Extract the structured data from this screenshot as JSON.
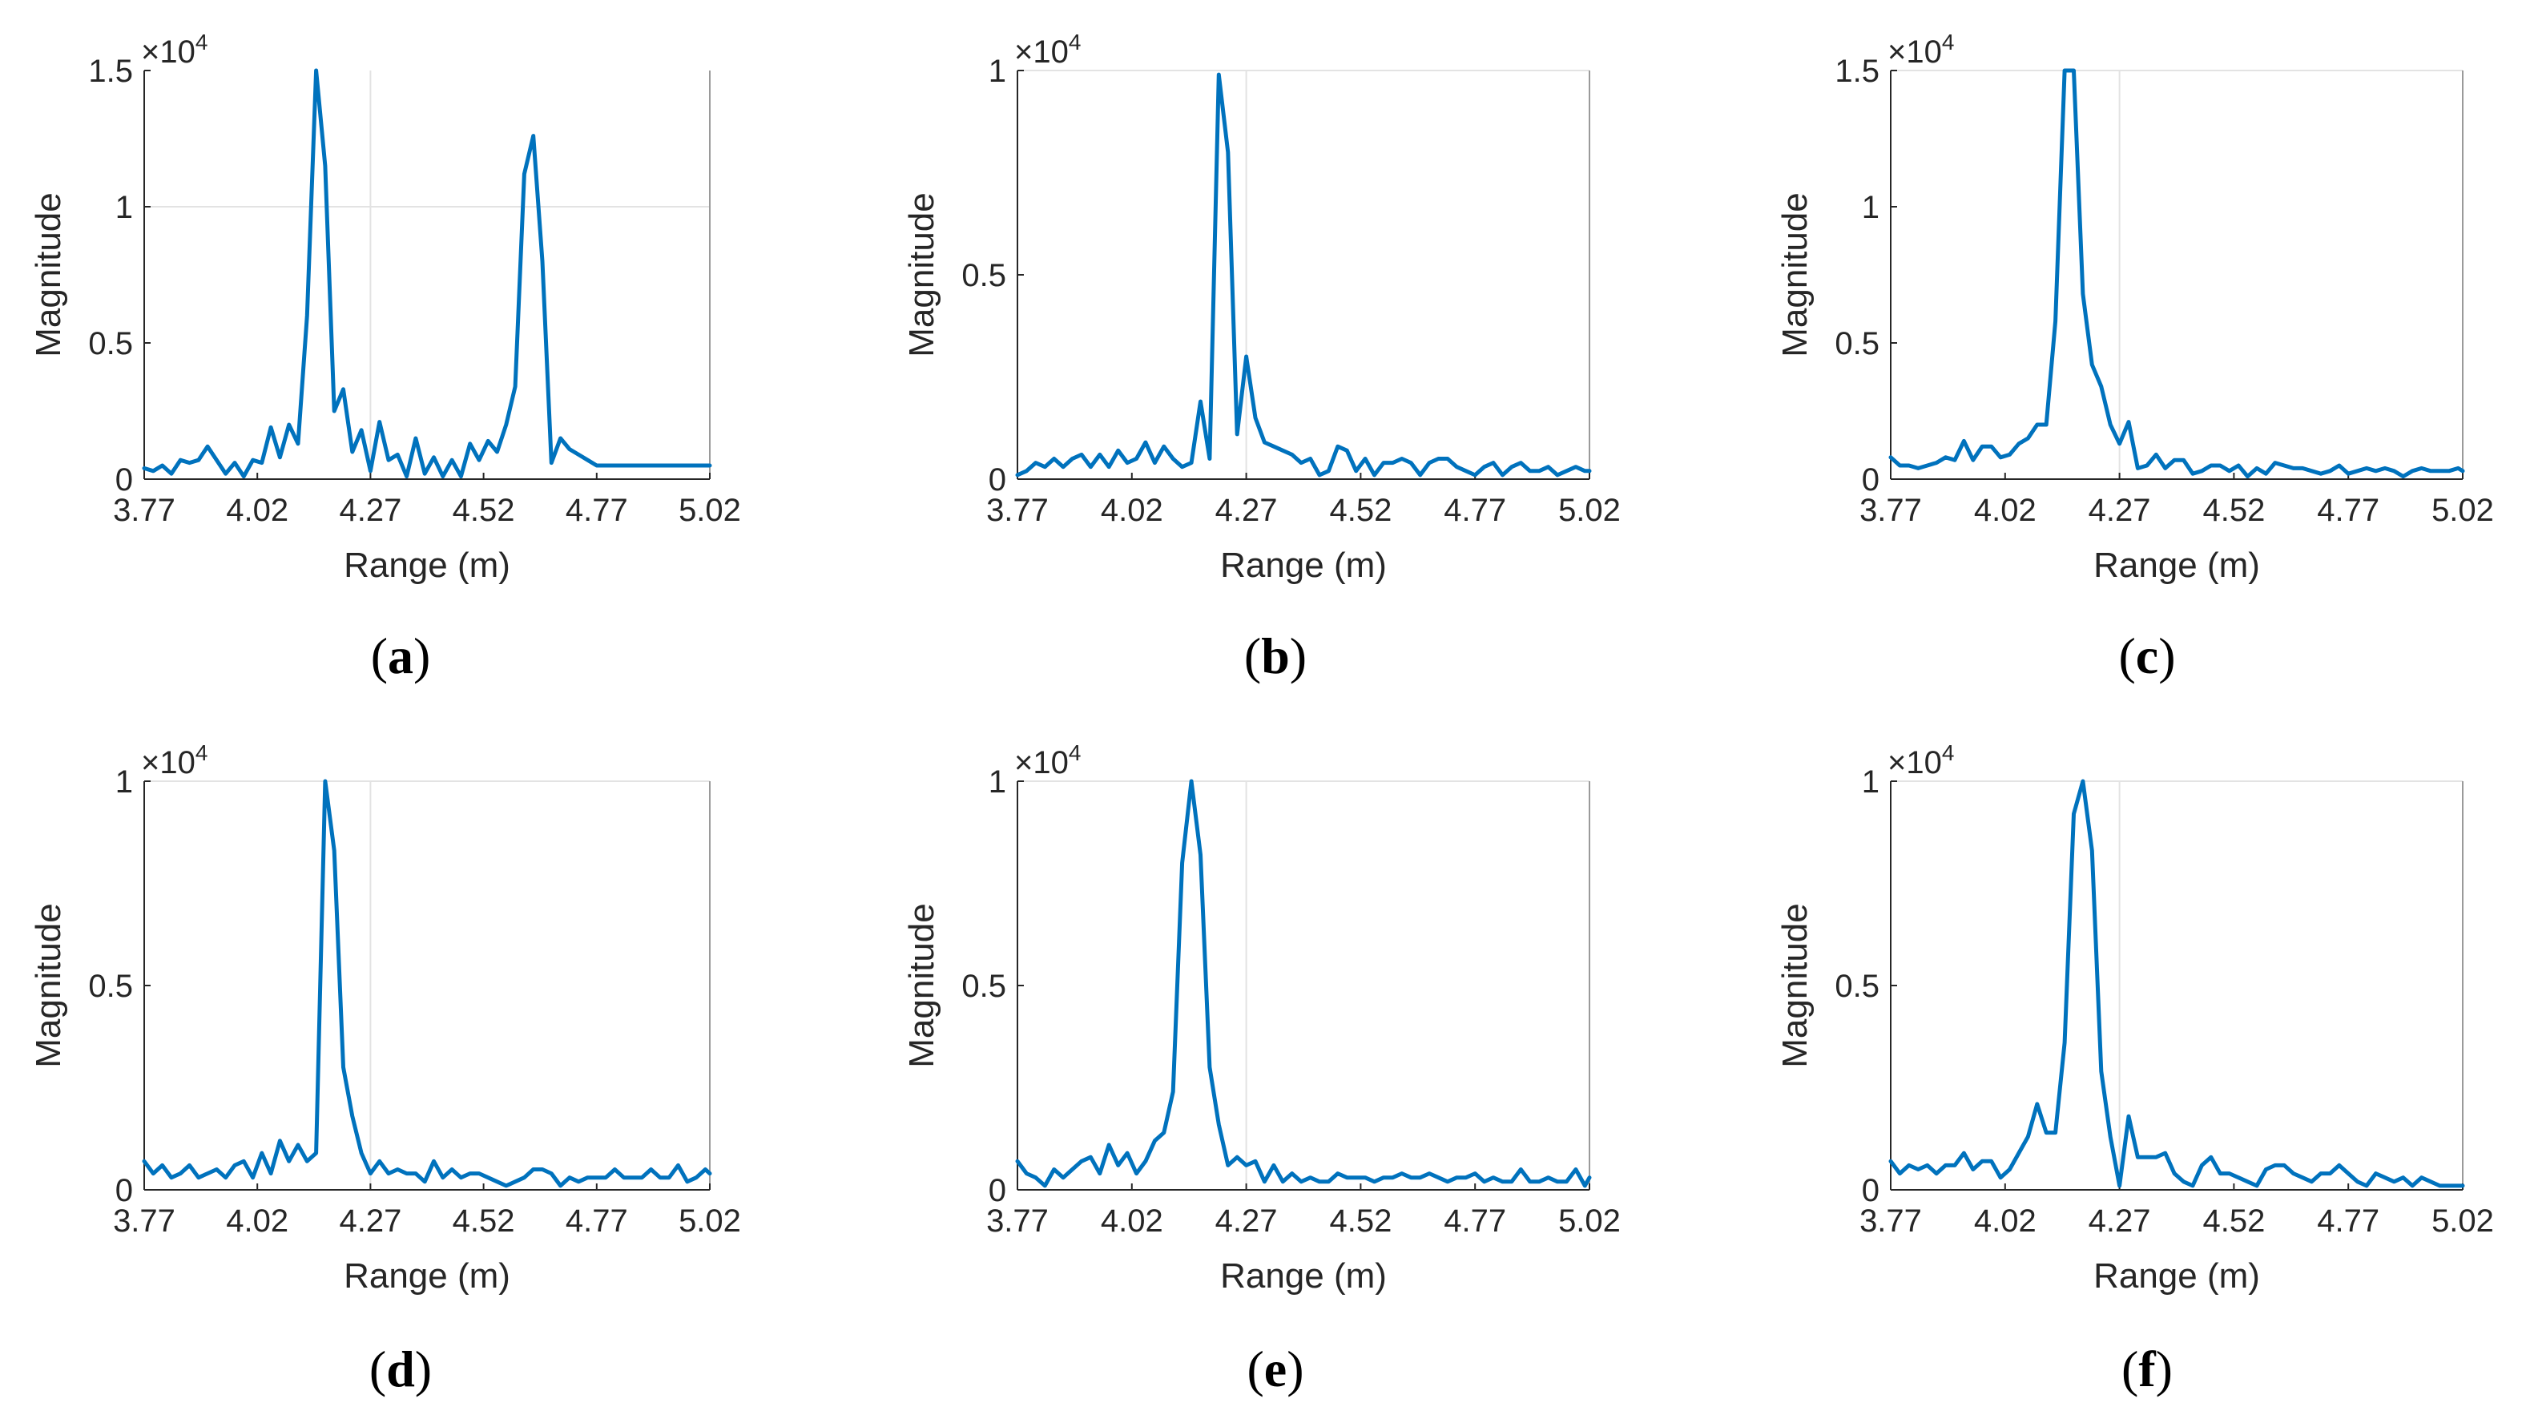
{
  "chart_data": [
    {
      "type": "line",
      "panel": "(a)",
      "caption_letter": "a",
      "xlabel": "Range (m)",
      "ylabel": "Magnitude",
      "exponent_label": "×10",
      "exponent_power": "4",
      "xlim": [
        3.77,
        5.02
      ],
      "ylim": [
        0,
        1.5
      ],
      "xticks": [
        "3.77",
        "4.02",
        "4.27",
        "4.52",
        "4.77",
        "5.02"
      ],
      "yticks": [
        {
          "value": 0,
          "label": "0"
        },
        {
          "value": 0.5,
          "label": "0.5"
        },
        {
          "value": 1,
          "label": "1"
        },
        {
          "value": 1.5,
          "label": "1.5"
        }
      ],
      "grid_y": [
        1
      ],
      "grid_x": [
        4.27
      ],
      "line_color": "#0072BD",
      "series": [
        {
          "name": "magnitude",
          "x": [
            3.77,
            3.79,
            3.81,
            3.83,
            3.85,
            3.87,
            3.89,
            3.91,
            3.93,
            3.95,
            3.97,
            3.99,
            4.01,
            4.03,
            4.05,
            4.07,
            4.09,
            4.11,
            4.13,
            4.15,
            4.17,
            4.19,
            4.21,
            4.23,
            4.25,
            4.27,
            4.29,
            4.31,
            4.33,
            4.35,
            4.37,
            4.39,
            4.41,
            4.43,
            4.45,
            4.47,
            4.49,
            4.51,
            4.53,
            4.55,
            4.57,
            4.59,
            4.61,
            4.63,
            4.65,
            4.67,
            4.69,
            4.71,
            4.73,
            4.75,
            4.77,
            4.79,
            4.81,
            4.83,
            4.85,
            4.87,
            4.89,
            4.91,
            4.93,
            4.95,
            4.97,
            4.99,
            5.01,
            5.02
          ],
          "y": [
            0.04,
            0.03,
            0.05,
            0.02,
            0.07,
            0.06,
            0.07,
            0.12,
            0.07,
            0.02,
            0.06,
            0.01,
            0.07,
            0.06,
            0.19,
            0.08,
            0.2,
            0.13,
            0.6,
            1.5,
            1.15,
            0.25,
            0.33,
            0.1,
            0.18,
            0.03,
            0.21,
            0.07,
            0.09,
            0.01,
            0.15,
            0.02,
            0.08,
            0.01,
            0.07,
            0.01,
            0.13,
            0.07,
            0.14,
            0.1,
            0.2,
            0.34,
            1.12,
            1.26,
            0.8,
            0.06,
            0.15,
            0.11,
            0.09,
            0.07,
            0.05,
            0.05,
            0.05,
            0.05,
            0.05,
            0.05,
            0.05,
            0.05,
            0.05,
            0.05,
            0.05,
            0.05,
            0.05,
            0.05
          ]
        }
      ]
    },
    {
      "type": "line",
      "panel": "(b)",
      "caption_letter": "b",
      "xlabel": "Range (m)",
      "ylabel": "Magnitude",
      "exponent_label": "×10",
      "exponent_power": "4",
      "xlim": [
        3.77,
        5.02
      ],
      "ylim": [
        0,
        1.0
      ],
      "xticks": [
        "3.77",
        "4.02",
        "4.27",
        "4.52",
        "4.77",
        "5.02"
      ],
      "yticks": [
        {
          "value": 0,
          "label": "0"
        },
        {
          "value": 0.5,
          "label": "0.5"
        },
        {
          "value": 1,
          "label": "1"
        }
      ],
      "grid_y": [
        1
      ],
      "grid_x": [
        4.27
      ],
      "line_color": "#0072BD",
      "series": [
        {
          "name": "magnitude",
          "x": [
            3.77,
            3.79,
            3.81,
            3.83,
            3.85,
            3.87,
            3.89,
            3.91,
            3.93,
            3.95,
            3.97,
            3.99,
            4.01,
            4.03,
            4.05,
            4.07,
            4.09,
            4.11,
            4.13,
            4.15,
            4.17,
            4.19,
            4.21,
            4.23,
            4.25,
            4.27,
            4.29,
            4.31,
            4.33,
            4.35,
            4.37,
            4.39,
            4.41,
            4.43,
            4.45,
            4.47,
            4.49,
            4.51,
            4.53,
            4.55,
            4.57,
            4.59,
            4.61,
            4.63,
            4.65,
            4.67,
            4.69,
            4.71,
            4.73,
            4.75,
            4.77,
            4.79,
            4.81,
            4.83,
            4.85,
            4.87,
            4.89,
            4.91,
            4.93,
            4.95,
            4.97,
            4.99,
            5.01,
            5.02
          ],
          "y": [
            0.01,
            0.02,
            0.04,
            0.03,
            0.05,
            0.03,
            0.05,
            0.06,
            0.03,
            0.06,
            0.03,
            0.07,
            0.04,
            0.05,
            0.09,
            0.04,
            0.08,
            0.05,
            0.03,
            0.04,
            0.19,
            0.05,
            0.99,
            0.8,
            0.11,
            0.3,
            0.15,
            0.09,
            0.08,
            0.07,
            0.06,
            0.04,
            0.05,
            0.01,
            0.02,
            0.08,
            0.07,
            0.02,
            0.05,
            0.01,
            0.04,
            0.04,
            0.05,
            0.04,
            0.01,
            0.04,
            0.05,
            0.05,
            0.03,
            0.02,
            0.01,
            0.03,
            0.04,
            0.01,
            0.03,
            0.04,
            0.02,
            0.02,
            0.03,
            0.01,
            0.02,
            0.03,
            0.02,
            0.02
          ]
        }
      ]
    },
    {
      "type": "line",
      "panel": "(c)",
      "caption_letter": "c",
      "xlabel": "Range (m)",
      "ylabel": "Magnitude",
      "exponent_label": "×10",
      "exponent_power": "4",
      "xlim": [
        3.77,
        5.02
      ],
      "ylim": [
        0,
        1.5
      ],
      "xticks": [
        "3.77",
        "4.02",
        "4.27",
        "4.52",
        "4.77",
        "5.02"
      ],
      "yticks": [
        {
          "value": 0,
          "label": "0"
        },
        {
          "value": 0.5,
          "label": "0.5"
        },
        {
          "value": 1,
          "label": "1"
        },
        {
          "value": 1.5,
          "label": "1.5"
        }
      ],
      "grid_y": [
        1.5
      ],
      "grid_x": [
        4.27
      ],
      "line_color": "#0072BD",
      "series": [
        {
          "name": "magnitude",
          "x": [
            3.77,
            3.79,
            3.81,
            3.83,
            3.85,
            3.87,
            3.89,
            3.91,
            3.93,
            3.95,
            3.97,
            3.99,
            4.01,
            4.03,
            4.05,
            4.07,
            4.09,
            4.11,
            4.13,
            4.15,
            4.17,
            4.19,
            4.21,
            4.23,
            4.25,
            4.27,
            4.29,
            4.31,
            4.33,
            4.35,
            4.37,
            4.39,
            4.41,
            4.43,
            4.45,
            4.47,
            4.49,
            4.51,
            4.53,
            4.55,
            4.57,
            4.59,
            4.61,
            4.63,
            4.65,
            4.67,
            4.69,
            4.71,
            4.73,
            4.75,
            4.77,
            4.79,
            4.81,
            4.83,
            4.85,
            4.87,
            4.89,
            4.91,
            4.93,
            4.95,
            4.97,
            4.99,
            5.01,
            5.02
          ],
          "y": [
            0.08,
            0.05,
            0.05,
            0.04,
            0.05,
            0.06,
            0.08,
            0.07,
            0.14,
            0.07,
            0.12,
            0.12,
            0.08,
            0.09,
            0.13,
            0.15,
            0.2,
            0.2,
            0.58,
            1.55,
            1.55,
            0.68,
            0.42,
            0.34,
            0.2,
            0.13,
            0.21,
            0.04,
            0.05,
            0.09,
            0.04,
            0.07,
            0.07,
            0.02,
            0.03,
            0.05,
            0.05,
            0.03,
            0.05,
            0.01,
            0.04,
            0.02,
            0.06,
            0.05,
            0.04,
            0.04,
            0.03,
            0.02,
            0.03,
            0.05,
            0.02,
            0.03,
            0.04,
            0.03,
            0.04,
            0.03,
            0.01,
            0.03,
            0.04,
            0.03,
            0.03,
            0.03,
            0.04,
            0.03
          ]
        }
      ]
    },
    {
      "type": "line",
      "panel": "(d)",
      "caption_letter": "d",
      "xlabel": "Range (m)",
      "ylabel": "Magnitude",
      "exponent_label": "×10",
      "exponent_power": "4",
      "xlim": [
        3.77,
        5.02
      ],
      "ylim": [
        0,
        1.0
      ],
      "xticks": [
        "3.77",
        "4.02",
        "4.27",
        "4.52",
        "4.77",
        "5.02"
      ],
      "yticks": [
        {
          "value": 0,
          "label": "0"
        },
        {
          "value": 0.5,
          "label": "0.5"
        },
        {
          "value": 1,
          "label": "1"
        }
      ],
      "grid_y": [
        1
      ],
      "grid_x": [
        4.27
      ],
      "line_color": "#0072BD",
      "series": [
        {
          "name": "magnitude",
          "x": [
            3.77,
            3.79,
            3.81,
            3.83,
            3.85,
            3.87,
            3.89,
            3.91,
            3.93,
            3.95,
            3.97,
            3.99,
            4.01,
            4.03,
            4.05,
            4.07,
            4.09,
            4.11,
            4.13,
            4.15,
            4.17,
            4.19,
            4.21,
            4.23,
            4.25,
            4.27,
            4.29,
            4.31,
            4.33,
            4.35,
            4.37,
            4.39,
            4.41,
            4.43,
            4.45,
            4.47,
            4.49,
            4.51,
            4.53,
            4.55,
            4.57,
            4.59,
            4.61,
            4.63,
            4.65,
            4.67,
            4.69,
            4.71,
            4.73,
            4.75,
            4.77,
            4.79,
            4.81,
            4.83,
            4.85,
            4.87,
            4.89,
            4.91,
            4.93,
            4.95,
            4.97,
            4.99,
            5.01,
            5.02
          ],
          "y": [
            0.07,
            0.04,
            0.06,
            0.03,
            0.04,
            0.06,
            0.03,
            0.04,
            0.05,
            0.03,
            0.06,
            0.07,
            0.03,
            0.09,
            0.04,
            0.12,
            0.07,
            0.11,
            0.07,
            0.09,
            1.05,
            0.83,
            0.3,
            0.18,
            0.09,
            0.04,
            0.07,
            0.04,
            0.05,
            0.04,
            0.04,
            0.02,
            0.07,
            0.03,
            0.05,
            0.03,
            0.04,
            0.04,
            0.03,
            0.02,
            0.01,
            0.02,
            0.03,
            0.05,
            0.05,
            0.04,
            0.01,
            0.03,
            0.02,
            0.03,
            0.03,
            0.03,
            0.05,
            0.03,
            0.03,
            0.03,
            0.05,
            0.03,
            0.03,
            0.06,
            0.02,
            0.03,
            0.05,
            0.04
          ]
        }
      ]
    },
    {
      "type": "line",
      "panel": "(e)",
      "caption_letter": "e",
      "xlabel": "Range (m)",
      "ylabel": "Magnitude",
      "exponent_label": "×10",
      "exponent_power": "4",
      "xlim": [
        3.77,
        5.02
      ],
      "ylim": [
        0,
        1.0
      ],
      "xticks": [
        "3.77",
        "4.02",
        "4.27",
        "4.52",
        "4.77",
        "5.02"
      ],
      "yticks": [
        {
          "value": 0,
          "label": "0"
        },
        {
          "value": 0.5,
          "label": "0.5"
        },
        {
          "value": 1,
          "label": "1"
        }
      ],
      "grid_y": [
        1
      ],
      "grid_x": [
        4.27
      ],
      "line_color": "#0072BD",
      "series": [
        {
          "name": "magnitude",
          "x": [
            3.77,
            3.79,
            3.81,
            3.83,
            3.85,
            3.87,
            3.89,
            3.91,
            3.93,
            3.95,
            3.97,
            3.99,
            4.01,
            4.03,
            4.05,
            4.07,
            4.09,
            4.11,
            4.13,
            4.15,
            4.17,
            4.19,
            4.21,
            4.23,
            4.25,
            4.27,
            4.29,
            4.31,
            4.33,
            4.35,
            4.37,
            4.39,
            4.41,
            4.43,
            4.45,
            4.47,
            4.49,
            4.51,
            4.53,
            4.55,
            4.57,
            4.59,
            4.61,
            4.63,
            4.65,
            4.67,
            4.69,
            4.71,
            4.73,
            4.75,
            4.77,
            4.79,
            4.81,
            4.83,
            4.85,
            4.87,
            4.89,
            4.91,
            4.93,
            4.95,
            4.97,
            4.99,
            5.01,
            5.02
          ],
          "y": [
            0.07,
            0.04,
            0.03,
            0.01,
            0.05,
            0.03,
            0.05,
            0.07,
            0.08,
            0.04,
            0.11,
            0.06,
            0.09,
            0.04,
            0.07,
            0.12,
            0.14,
            0.24,
            0.8,
            1.05,
            0.82,
            0.3,
            0.16,
            0.06,
            0.08,
            0.06,
            0.07,
            0.02,
            0.06,
            0.02,
            0.04,
            0.02,
            0.03,
            0.02,
            0.02,
            0.04,
            0.03,
            0.03,
            0.03,
            0.02,
            0.03,
            0.03,
            0.04,
            0.03,
            0.03,
            0.04,
            0.03,
            0.02,
            0.03,
            0.03,
            0.04,
            0.02,
            0.03,
            0.02,
            0.02,
            0.05,
            0.02,
            0.02,
            0.03,
            0.02,
            0.02,
            0.05,
            0.01,
            0.03
          ]
        }
      ]
    },
    {
      "type": "line",
      "panel": "(f)",
      "caption_letter": "f",
      "xlabel": "Range (m)",
      "ylabel": "Magnitude",
      "exponent_label": "×10",
      "exponent_power": "4",
      "xlim": [
        3.77,
        5.02
      ],
      "ylim": [
        0,
        1.0
      ],
      "xticks": [
        "3.77",
        "4.02",
        "4.27",
        "4.52",
        "4.77",
        "5.02"
      ],
      "yticks": [
        {
          "value": 0,
          "label": "0"
        },
        {
          "value": 0.5,
          "label": "0.5"
        },
        {
          "value": 1,
          "label": "1"
        }
      ],
      "grid_y": [
        1
      ],
      "grid_x": [
        4.27
      ],
      "line_color": "#0072BD",
      "series": [
        {
          "name": "magnitude",
          "x": [
            3.77,
            3.79,
            3.81,
            3.83,
            3.85,
            3.87,
            3.89,
            3.91,
            3.93,
            3.95,
            3.97,
            3.99,
            4.01,
            4.03,
            4.05,
            4.07,
            4.09,
            4.11,
            4.13,
            4.15,
            4.17,
            4.19,
            4.21,
            4.23,
            4.25,
            4.27,
            4.29,
            4.31,
            4.33,
            4.35,
            4.37,
            4.39,
            4.41,
            4.43,
            4.45,
            4.47,
            4.49,
            4.51,
            4.53,
            4.55,
            4.57,
            4.59,
            4.61,
            4.63,
            4.65,
            4.67,
            4.69,
            4.71,
            4.73,
            4.75,
            4.77,
            4.79,
            4.81,
            4.83,
            4.85,
            4.87,
            4.89,
            4.91,
            4.93,
            4.95,
            4.97,
            4.99,
            5.01,
            5.02
          ],
          "y": [
            0.07,
            0.04,
            0.06,
            0.05,
            0.06,
            0.04,
            0.06,
            0.06,
            0.09,
            0.05,
            0.07,
            0.07,
            0.03,
            0.05,
            0.09,
            0.13,
            0.21,
            0.14,
            0.14,
            0.36,
            0.92,
            1.06,
            0.83,
            0.29,
            0.13,
            0.01,
            0.18,
            0.08,
            0.08,
            0.08,
            0.09,
            0.04,
            0.02,
            0.01,
            0.06,
            0.08,
            0.04,
            0.04,
            0.03,
            0.02,
            0.01,
            0.05,
            0.06,
            0.06,
            0.04,
            0.03,
            0.02,
            0.04,
            0.04,
            0.06,
            0.04,
            0.02,
            0.01,
            0.04,
            0.03,
            0.02,
            0.03,
            0.01,
            0.03,
            0.02,
            0.01,
            0.01,
            0.01,
            0.01
          ]
        }
      ]
    }
  ]
}
